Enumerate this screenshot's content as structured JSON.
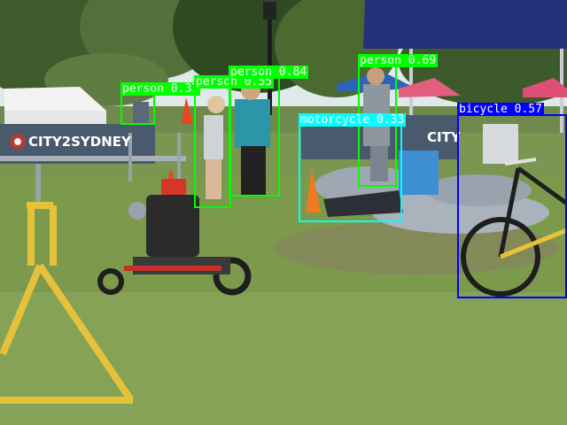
{
  "image": {
    "banners": [
      "CITY2SYDNEY",
      "CITY"
    ]
  },
  "colors": {
    "person": "#00ff00",
    "motorcycle": "#00ffff",
    "bicycle": "#0000ff"
  },
  "detections": [
    {
      "id": "person-1",
      "label": "person 0.37",
      "class": "person"
    },
    {
      "id": "person-2",
      "label": "person 0.55",
      "class": "person"
    },
    {
      "id": "person-3",
      "label": "person 0.84",
      "class": "person"
    },
    {
      "id": "person-4",
      "label": "person 0.69",
      "class": "person"
    },
    {
      "id": "motorcycle-1",
      "label": "motorcycle 0.33",
      "class": "motorcycle"
    },
    {
      "id": "bicycle-1",
      "label": "bicycle 0.57",
      "class": "bicycle"
    }
  ]
}
